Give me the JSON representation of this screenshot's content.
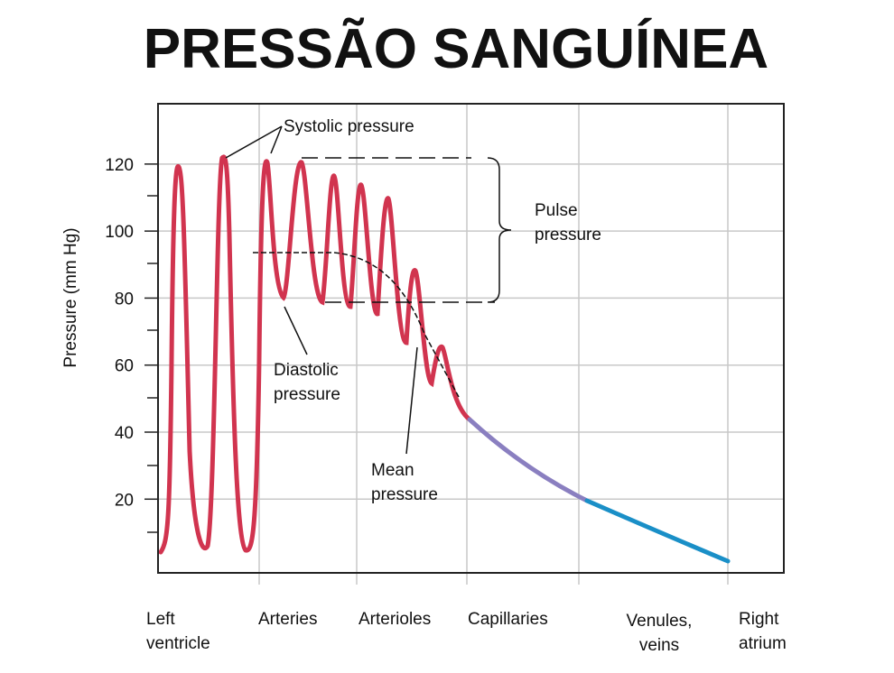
{
  "chart_data": {
    "type": "line",
    "title": "PRESSÃO SANGUÍNEA",
    "y_label": "Pressure (mm Hg)",
    "ylim": [
      -2,
      138
    ],
    "yticks": [
      20,
      40,
      60,
      80,
      100,
      120
    ],
    "grid": true,
    "categories": [
      [
        "Left",
        "ventricle"
      ],
      [
        "Arteries"
      ],
      [
        "Arterioles"
      ],
      [
        "Capillaries"
      ],
      [
        "Venules,",
        "veins"
      ],
      [
        "Right",
        "atrium"
      ]
    ],
    "annotations": {
      "systolic": [
        "Systolic pressure"
      ],
      "pulse": [
        "Pulse",
        "pressure"
      ],
      "diastolic": [
        "Diastolic",
        "pressure"
      ],
      "mean": [
        "Mean",
        "pressure"
      ]
    },
    "colors": {
      "left_ventricle_arteries_arterioles": "#d1344f",
      "capillaries": "#8a7fc0",
      "venules_veins": "#1a8fc7"
    }
  }
}
